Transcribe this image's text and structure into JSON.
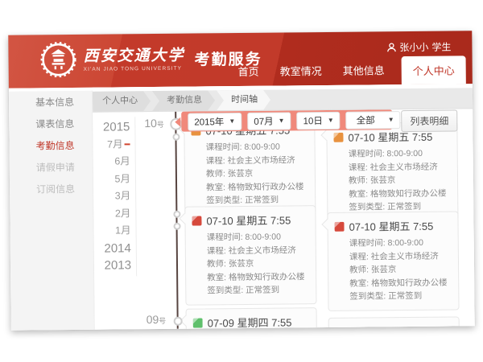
{
  "header": {
    "university_cn": "西安交通大学",
    "university_en": "XI'AN JIAO TONG UNIVERSITY",
    "service_title": "考勤服务",
    "user": {
      "name": "张小小",
      "role": "学生"
    },
    "nav": [
      {
        "id": "home",
        "label": "首页",
        "active": false
      },
      {
        "id": "classroom-status",
        "label": "教室情况",
        "active": false
      },
      {
        "id": "other-info",
        "label": "其他信息",
        "active": false
      },
      {
        "id": "personal-center",
        "label": "个人中心",
        "active": true
      }
    ]
  },
  "sidebar": {
    "items": [
      {
        "id": "basic-info",
        "label": "基本信息",
        "state": "normal"
      },
      {
        "id": "timetable-info",
        "label": "课表信息",
        "state": "normal"
      },
      {
        "id": "attendance-info",
        "label": "考勤信息",
        "state": "active"
      },
      {
        "id": "leave-request",
        "label": "请假申请",
        "state": "muted"
      },
      {
        "id": "subscription-info",
        "label": "订阅信息",
        "state": "muted"
      }
    ]
  },
  "breadcrumb": {
    "items": [
      {
        "label": "个人中心",
        "active": false
      },
      {
        "label": "考勤信息",
        "active": false
      },
      {
        "label": "时间轴",
        "active": true
      }
    ]
  },
  "filters": {
    "year": "2015年",
    "month": "07月",
    "day": "10日",
    "type": "全部",
    "caret_glyph": "▼",
    "list_button_label": "列表明细",
    "ribbon_color": "#f0897b"
  },
  "timeline": {
    "year_nav": [
      {
        "label": "2015",
        "type": "year",
        "current": false
      },
      {
        "label": "7月",
        "type": "month",
        "current": true
      },
      {
        "label": "6月",
        "type": "month",
        "current": false
      },
      {
        "label": "5月",
        "type": "month",
        "current": false
      },
      {
        "label": "3月",
        "type": "month",
        "current": false
      },
      {
        "label": "2月",
        "type": "month",
        "current": false
      },
      {
        "label": "1月",
        "type": "month",
        "current": false
      },
      {
        "label": "2014",
        "type": "year",
        "current": false
      },
      {
        "label": "2013",
        "type": "year",
        "current": false
      }
    ],
    "day_labels": [
      {
        "label": "10号",
        "slot": "top"
      },
      {
        "label": "09号",
        "slot": "bottom"
      }
    ],
    "accent_line_color": "#574440"
  },
  "cards": [
    {
      "row": 1,
      "column": "left",
      "icon": "calendar-status-icon",
      "icon_color": "#e8923f",
      "date": "07-10",
      "weekday": "星期五",
      "time": "7:55",
      "stub": false,
      "fields": [
        {
          "label": "课程时间",
          "value": "8:00-9:00"
        },
        {
          "label": "课程",
          "value": "社会主义市场经济"
        },
        {
          "label": "教师",
          "value": "张芸京"
        },
        {
          "label": "教室",
          "value": "格物致知行政办公楼"
        },
        {
          "label": "签到类型",
          "value": "正常签到"
        }
      ]
    },
    {
      "row": 1,
      "column": "right",
      "icon": "calendar-status-icon",
      "icon_color": "#e8923f",
      "date": "07-10",
      "weekday": "星期五",
      "time": "7:55",
      "stub": false,
      "fields": [
        {
          "label": "课程时间",
          "value": "8:00-9:00"
        },
        {
          "label": "课程",
          "value": "社会主义市场经济"
        },
        {
          "label": "教师",
          "value": "张芸京"
        },
        {
          "label": "教室",
          "value": "格物致知行政办公楼"
        },
        {
          "label": "签到类型",
          "value": "正常签到"
        }
      ]
    },
    {
      "row": 2,
      "column": "left",
      "icon": "calendar-status-icon",
      "icon_color": "#d6493c",
      "date": "07-10",
      "weekday": "星期五",
      "time": "7:55",
      "stub": false,
      "fields": [
        {
          "label": "课程时间",
          "value": "8:00-9:00"
        },
        {
          "label": "课程",
          "value": "社会主义市场经济"
        },
        {
          "label": "教师",
          "value": "张芸京"
        },
        {
          "label": "教室",
          "value": "格物致知行政办公楼"
        },
        {
          "label": "签到类型",
          "value": "正常签到"
        }
      ]
    },
    {
      "row": 2,
      "column": "right",
      "icon": "calendar-status-icon",
      "icon_color": "#d6493c",
      "date": "07-10",
      "weekday": "星期五",
      "time": "7:55",
      "stub": false,
      "fields": [
        {
          "label": "课程时间",
          "value": "8:00-9:00"
        },
        {
          "label": "课程",
          "value": "社会主义市场经济"
        },
        {
          "label": "教师",
          "value": "张芸京"
        },
        {
          "label": "教室",
          "value": "格物致知行政办公楼"
        },
        {
          "label": "签到类型",
          "value": "正常签到"
        }
      ]
    },
    {
      "row": 3,
      "column": "left",
      "icon": "calendar-status-icon",
      "icon_color": "#5fc06c",
      "date": "07-09",
      "weekday": "星期四",
      "time": "7:55",
      "stub": false,
      "fields": []
    },
    {
      "row": 3,
      "column": "right",
      "icon": "",
      "icon_color": "",
      "date": "",
      "weekday": "",
      "time": "",
      "stub": true,
      "fields": []
    }
  ]
}
